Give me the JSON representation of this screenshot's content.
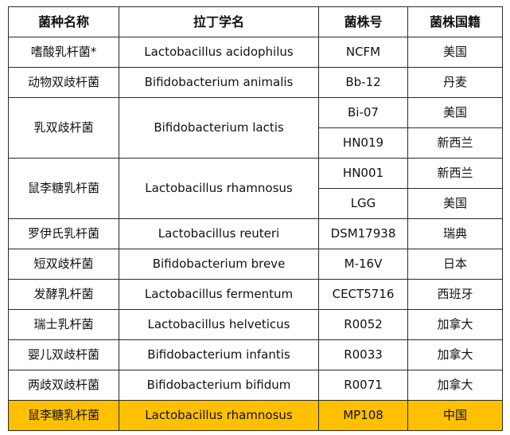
{
  "table": {
    "headers": [
      "菌种名称",
      "拉丁学名",
      "菌株号",
      "菌株国籍"
    ],
    "groups": [
      {
        "name": "嗜酸乳杆菌*",
        "latin": "Lactobacillus acidophilus",
        "strains": [
          {
            "id": "NCFM",
            "country": "美国"
          }
        ],
        "highlight": false
      },
      {
        "name": "动物双歧杆菌",
        "latin": "Bifidobacterium animalis",
        "strains": [
          {
            "id": "Bb-12",
            "country": "丹麦"
          }
        ],
        "highlight": false
      },
      {
        "name": "乳双歧杆菌",
        "latin": "Bifidobacterium lactis",
        "strains": [
          {
            "id": "Bi-07",
            "country": "美国"
          },
          {
            "id": "HN019",
            "country": "新西兰"
          }
        ],
        "highlight": false
      },
      {
        "name": "鼠李糖乳杆菌",
        "latin": "Lactobacillus rhamnosus",
        "strains": [
          {
            "id": "HN001",
            "country": "新西兰"
          },
          {
            "id": "LGG",
            "country": "美国"
          }
        ],
        "highlight": false
      },
      {
        "name": "罗伊氏乳杆菌",
        "latin": "Lactobacillus reuteri",
        "strains": [
          {
            "id": "DSM17938",
            "country": "瑞典"
          }
        ],
        "highlight": false
      },
      {
        "name": "短双歧杆菌",
        "latin": "Bifidobacterium breve",
        "strains": [
          {
            "id": "M-16V",
            "country": "日本"
          }
        ],
        "highlight": false
      },
      {
        "name": "发酵乳杆菌",
        "latin": "Lactobacillus fermentum",
        "strains": [
          {
            "id": "CECT5716",
            "country": "西班牙"
          }
        ],
        "highlight": false
      },
      {
        "name": "瑞士乳杆菌",
        "latin": "Lactobacillus helveticus",
        "strains": [
          {
            "id": "R0052",
            "country": "加拿大"
          }
        ],
        "highlight": false
      },
      {
        "name": "婴儿双歧杆菌",
        "latin": "Bifidobacterium infantis",
        "strains": [
          {
            "id": "R0033",
            "country": "加拿大"
          }
        ],
        "highlight": false
      },
      {
        "name": "两歧双歧杆菌",
        "latin": "Bifidobacterium bifidum",
        "strains": [
          {
            "id": "R0071",
            "country": "加拿大"
          }
        ],
        "highlight": false
      },
      {
        "name": "鼠李糖乳杆菌",
        "latin": "Lactobacillus rhamnosus",
        "strains": [
          {
            "id": "MP108",
            "country": "中国"
          }
        ],
        "highlight": true
      }
    ],
    "highlight_color": "#ffc000"
  }
}
